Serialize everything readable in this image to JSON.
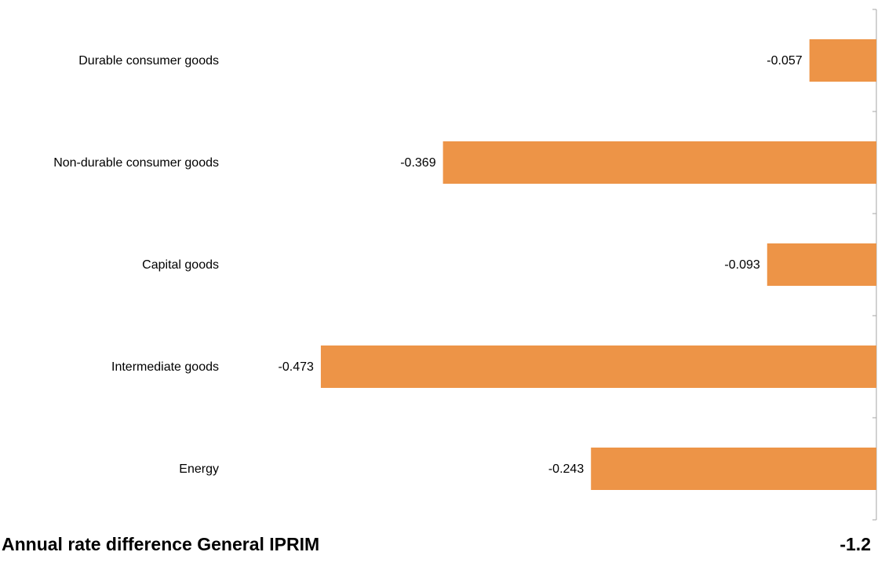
{
  "chart_data": {
    "type": "bar",
    "orientation": "horizontal",
    "categories": [
      "Durable consumer goods",
      "Non-durable consumer goods",
      "Capital goods",
      "Intermediate goods",
      "Energy"
    ],
    "values": [
      -0.057,
      -0.369,
      -0.093,
      -0.473,
      -0.243
    ],
    "value_labels": [
      "-0.057",
      "-0.369",
      "-0.093",
      "-0.473",
      "-0.243"
    ],
    "xlim": [
      -0.55,
      0
    ],
    "grid": false,
    "bar_color": "#ED9447"
  },
  "footer": {
    "label": "Annual rate difference General IPRIM",
    "value": "-1.2"
  }
}
